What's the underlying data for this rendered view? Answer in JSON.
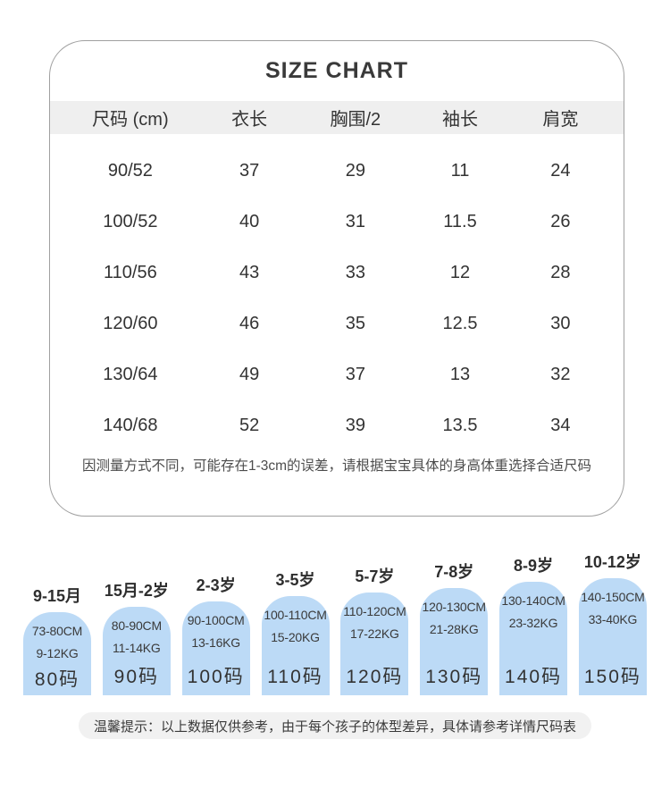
{
  "card": {
    "title": "SIZE CHART",
    "columns": [
      "尺码 (cm)",
      "衣长",
      "胸围/2",
      "袖长",
      "肩宽"
    ],
    "rows": [
      [
        "90/52",
        "37",
        "29",
        "11",
        "24"
      ],
      [
        "100/52",
        "40",
        "31",
        "11.5",
        "26"
      ],
      [
        "110/56",
        "43",
        "33",
        "12",
        "28"
      ],
      [
        "120/60",
        "46",
        "35",
        "12.5",
        "30"
      ],
      [
        "130/64",
        "49",
        "37",
        "13",
        "32"
      ],
      [
        "140/68",
        "52",
        "39",
        "13.5",
        "34"
      ]
    ],
    "note": "因测量方式不同，可能存在1-3cm的误差，请根据宝宝具体的身高体重选择合适尺码"
  },
  "size_guide": {
    "items": [
      {
        "age": "9-15月",
        "height": "73-80CM",
        "weight": "9-12KG",
        "size": "80码"
      },
      {
        "age": "15月-2岁",
        "height": "80-90CM",
        "weight": "11-14KG",
        "size": "90码"
      },
      {
        "age": "2-3岁",
        "height": "90-100CM",
        "weight": "13-16KG",
        "size": "100码"
      },
      {
        "age": "3-5岁",
        "height": "100-110CM",
        "weight": "15-20KG",
        "size": "110码"
      },
      {
        "age": "5-7岁",
        "height": "110-120CM",
        "weight": "17-22KG",
        "size": "120码"
      },
      {
        "age": "7-8岁",
        "height": "120-130CM",
        "weight": "21-28KG",
        "size": "130码"
      },
      {
        "age": "8-9岁",
        "height": "130-140CM",
        "weight": "23-32KG",
        "size": "140码"
      },
      {
        "age": "10-12岁",
        "height": "140-150CM",
        "weight": "33-40KG",
        "size": "150码"
      }
    ]
  },
  "footer": {
    "tip": "温馨提示：以上数据仅供参考，由于每个孩子的体型差异，具体请参考详情尺码表"
  },
  "colors": {
    "arch_blue": "#bcdaf6",
    "header_band_gray": "#efefef",
    "card_border_gray": "#a0a0a0",
    "pill_gray": "#f1f1f1",
    "text_dark": "#333333"
  }
}
